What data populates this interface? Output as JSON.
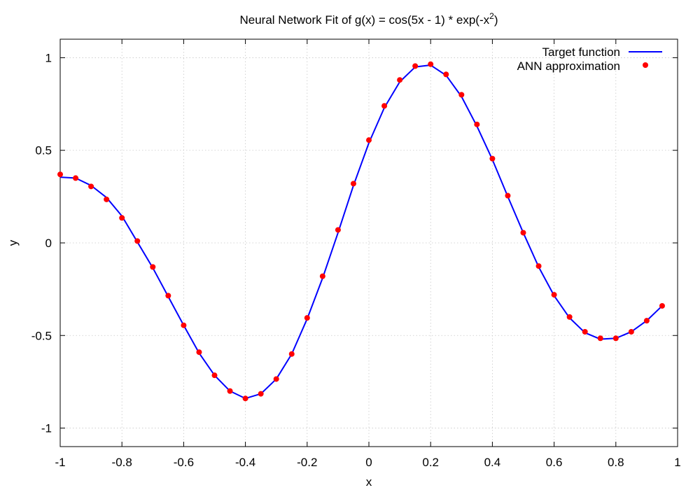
{
  "chart_data": {
    "type": "line",
    "title_main": "Neural Network Fit of g(x) = cos(5x - 1) * exp(-x",
    "title_sup": "2",
    "title_end": ")",
    "xlabel": "x",
    "ylabel": "y",
    "xlim": [
      -1,
      1
    ],
    "ylim": [
      -1.1,
      1.1
    ],
    "xticks": [
      -1,
      -0.8,
      -0.6,
      -0.4,
      -0.2,
      0,
      0.2,
      0.4,
      0.6,
      0.8,
      1
    ],
    "xtick_labels": [
      "-1",
      "-0.8",
      "-0.6",
      "-0.4",
      "-0.2",
      "0",
      "0.2",
      "0.4",
      "0.6",
      "0.8",
      "1"
    ],
    "yticks": [
      -1,
      -0.5,
      0,
      0.5,
      1
    ],
    "ytick_labels": [
      "-1",
      "-0.5",
      "0",
      "0.5",
      "1"
    ],
    "grid": true,
    "legend_position": "top-right",
    "series": [
      {
        "name": "Target function",
        "style": "line",
        "color": "#0000ff",
        "x": [
          -1.0,
          -0.95,
          -0.9,
          -0.85,
          -0.8,
          -0.75,
          -0.7,
          -0.65,
          -0.6,
          -0.55,
          -0.5,
          -0.45,
          -0.4,
          -0.35,
          -0.3,
          -0.25,
          -0.2,
          -0.15,
          -0.1,
          -0.05,
          0.0,
          0.05,
          0.1,
          0.15,
          0.2,
          0.25,
          0.3,
          0.35,
          0.4,
          0.45,
          0.5,
          0.55,
          0.6,
          0.65,
          0.7,
          0.75,
          0.8,
          0.85,
          0.9,
          0.95
        ],
        "y": [
          0.355,
          0.35,
          0.31,
          0.245,
          0.145,
          0.005,
          -0.135,
          -0.29,
          -0.445,
          -0.595,
          -0.715,
          -0.8,
          -0.84,
          -0.815,
          -0.735,
          -0.6,
          -0.41,
          -0.19,
          0.055,
          0.31,
          0.54,
          0.73,
          0.87,
          0.95,
          0.96,
          0.905,
          0.79,
          0.63,
          0.45,
          0.25,
          0.055,
          -0.13,
          -0.285,
          -0.405,
          -0.485,
          -0.52,
          -0.515,
          -0.48,
          -0.42,
          -0.34
        ]
      },
      {
        "name": "ANN approximation",
        "style": "points",
        "color": "#ff0000",
        "x": [
          -1.0,
          -0.95,
          -0.9,
          -0.85,
          -0.8,
          -0.75,
          -0.7,
          -0.65,
          -0.6,
          -0.55,
          -0.5,
          -0.45,
          -0.4,
          -0.35,
          -0.3,
          -0.25,
          -0.2,
          -0.15,
          -0.1,
          -0.05,
          0.0,
          0.05,
          0.1,
          0.15,
          0.2,
          0.25,
          0.3,
          0.35,
          0.4,
          0.45,
          0.5,
          0.55,
          0.6,
          0.65,
          0.7,
          0.75,
          0.8,
          0.85,
          0.9,
          0.95
        ],
        "y": [
          0.37,
          0.35,
          0.305,
          0.235,
          0.135,
          0.01,
          -0.13,
          -0.285,
          -0.445,
          -0.59,
          -0.715,
          -0.8,
          -0.84,
          -0.815,
          -0.735,
          -0.6,
          -0.405,
          -0.18,
          0.07,
          0.32,
          0.555,
          0.74,
          0.88,
          0.955,
          0.965,
          0.91,
          0.8,
          0.64,
          0.455,
          0.255,
          0.055,
          -0.125,
          -0.28,
          -0.4,
          -0.48,
          -0.515,
          -0.515,
          -0.48,
          -0.42,
          -0.34
        ]
      }
    ]
  }
}
